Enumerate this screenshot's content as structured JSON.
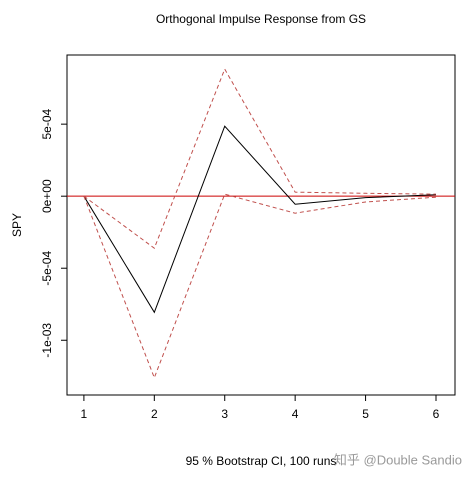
{
  "chart_data": {
    "type": "line",
    "title": "Orthogonal Impulse Response from GS",
    "x_label": "95 % Bootstrap CI,  100 runs",
    "y_label": "SPY",
    "watermark": "知乎 @Double Sandio",
    "x": [
      1,
      2,
      3,
      4,
      5,
      6
    ],
    "series": [
      {
        "color": "#000000",
        "dash": "solid",
        "values": [
          0,
          -0.000806,
          0.000486,
          -5.6e-05,
          -1e-05,
          1e-05
        ]
      },
      {
        "color": "#c0504d",
        "dash": "dashed",
        "values": [
          0,
          -0.000361,
          0.000882,
          2.8e-05,
          2e-05,
          1.4e-05
        ]
      },
      {
        "color": "#c0504d",
        "dash": "dashed",
        "values": [
          0,
          -0.00126,
          1.4e-05,
          -0.000118,
          -4e-05,
          -7e-06
        ]
      }
    ],
    "hline": {
      "value": 0,
      "color": "#cc0000"
    },
    "xlim": [
      0.76,
      6.27
    ],
    "ylim": [
      -0.00138,
      0.00098
    ],
    "xticks": [
      1,
      2,
      3,
      4,
      5,
      6
    ],
    "yticks": [
      {
        "value": -0.001,
        "label": "-1e-03"
      },
      {
        "value": -0.0005,
        "label": "-5e-04"
      },
      {
        "value": 0,
        "label": "0e+00"
      },
      {
        "value": 0.0005,
        "label": "5e-04"
      }
    ]
  }
}
